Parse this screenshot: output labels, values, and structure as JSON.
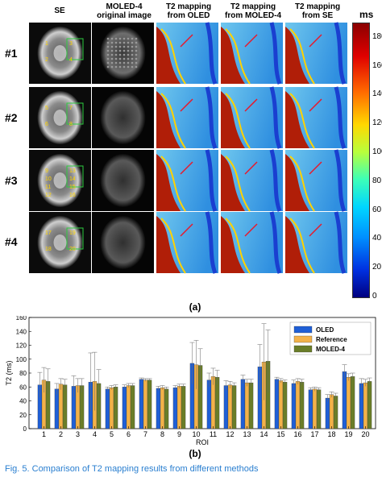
{
  "panel_a": {
    "column_headers": [
      {
        "line1": "SE",
        "line2": ""
      },
      {
        "line1": "MOLED-4",
        "line2": "original image"
      },
      {
        "line1": "T2 mapping",
        "line2": "from OLED"
      },
      {
        "line1": "T2 mapping",
        "line2": "from MOLED-4"
      },
      {
        "line1": "T2 mapping",
        "line2": "from SE"
      }
    ],
    "row_labels": [
      "#1",
      "#2",
      "#3",
      "#4"
    ],
    "colorbar": {
      "unit": "ms",
      "ticks": [
        "180",
        "160",
        "140",
        "120",
        "100",
        "80",
        "60",
        "40",
        "20",
        "0"
      ],
      "max": 190
    },
    "roi_numbers": [
      [
        "1",
        "2",
        "3",
        "4"
      ],
      [
        "5",
        "6",
        "7",
        "8"
      ],
      [
        "9",
        "10",
        "11",
        "12",
        "13",
        "14",
        "15",
        "16"
      ],
      [
        "17",
        "18",
        "19",
        "20"
      ]
    ],
    "label": "(a)"
  },
  "panel_b": {
    "label": "(b)"
  },
  "chart_data": {
    "type": "bar",
    "ylabel": "T2 (ms)",
    "xlabel": "ROI",
    "ylim": [
      0,
      160
    ],
    "yticks": [
      0,
      20,
      40,
      60,
      80,
      100,
      120,
      140,
      160
    ],
    "categories": [
      "1",
      "2",
      "3",
      "4",
      "5",
      "6",
      "7",
      "8",
      "9",
      "10",
      "11",
      "12",
      "13",
      "14",
      "15",
      "16",
      "17",
      "18",
      "19",
      "20"
    ],
    "legend_position": "top-right",
    "series": [
      {
        "name": "OLED",
        "color": "#1f5fd6",
        "values": [
          63,
          57,
          61,
          67,
          57,
          60,
          71,
          58,
          59,
          94,
          70,
          62,
          71,
          89,
          71,
          65,
          56,
          44,
          82,
          65
        ],
        "errors": [
          18,
          8,
          15,
          42,
          3,
          3,
          2,
          3,
          3,
          30,
          10,
          7,
          6,
          32,
          3,
          5,
          3,
          5,
          10,
          7
        ]
      },
      {
        "name": "Reference",
        "color": "#f3b24a",
        "values": [
          70,
          64,
          62,
          68,
          59,
          62,
          70,
          59,
          61,
          92,
          75,
          63,
          66,
          96,
          69,
          68,
          57,
          49,
          74,
          66
        ],
        "errors": [
          18,
          8,
          10,
          42,
          3,
          3,
          2,
          3,
          3,
          35,
          12,
          5,
          5,
          55,
          3,
          4,
          3,
          4,
          5,
          5
        ]
      },
      {
        "name": "MOLED-4",
        "color": "#6a7d28",
        "values": [
          68,
          63,
          62,
          65,
          60,
          62,
          70,
          57,
          61,
          91,
          74,
          62,
          66,
          97,
          67,
          67,
          56,
          47,
          75,
          68
        ],
        "errors": [
          18,
          8,
          10,
          20,
          3,
          3,
          2,
          3,
          3,
          24,
          10,
          4,
          5,
          45,
          3,
          4,
          3,
          4,
          5,
          5
        ]
      }
    ]
  },
  "figure_caption": "Fig. 5.    Comparison of T2 mapping results from different methods"
}
